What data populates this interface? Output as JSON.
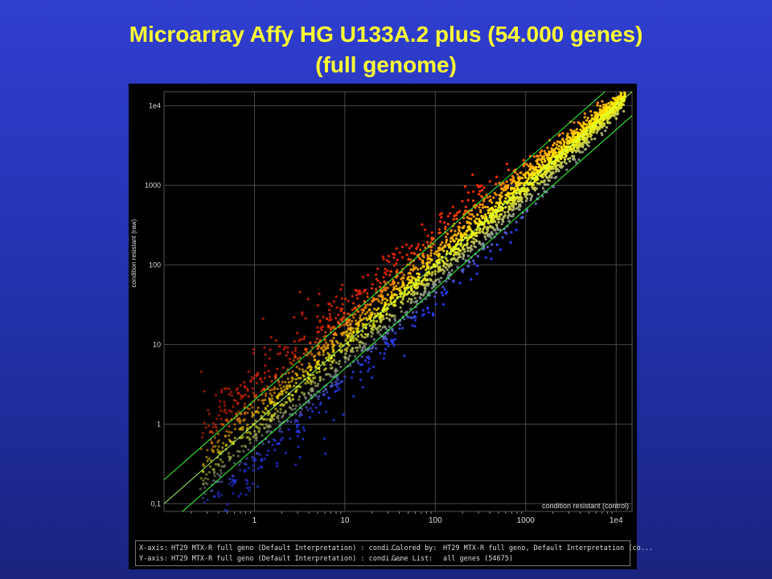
{
  "slide": {
    "title_line1": "Microarray Affy HG U133A.2 plus (54.000 genes)",
    "title_line2": "(full genome)",
    "title_color": "#ffff33"
  },
  "chart_data": {
    "type": "scatter",
    "x_scale": "log",
    "y_scale": "log",
    "xlim": [
      0.1,
      15000
    ],
    "ylim": [
      0.08,
      15000
    ],
    "x_ticks": [
      {
        "value": 1,
        "label": "1"
      },
      {
        "value": 10,
        "label": "10"
      },
      {
        "value": 100,
        "label": "100"
      },
      {
        "value": 1000,
        "label": "1000"
      },
      {
        "value": 10000,
        "label": "1e4"
      }
    ],
    "y_ticks": [
      {
        "value": 0.1,
        "label": "0,1"
      },
      {
        "value": 1,
        "label": "1"
      },
      {
        "value": 10,
        "label": "10"
      },
      {
        "value": 100,
        "label": "100"
      },
      {
        "value": 1000,
        "label": "1000"
      },
      {
        "value": 10000,
        "label": "1e4"
      }
    ],
    "xlabel": "condition resistant  (control)",
    "ylabel": "condition resistant   (raw)",
    "grid": true,
    "reference_lines": [
      {
        "fold_change": 1,
        "color": "#aaff66"
      },
      {
        "fold_change": 2,
        "color": "#33ff33"
      },
      {
        "fold_change": 0.5,
        "color": "#33ff33"
      }
    ],
    "color_scale": {
      "up": "#ff2a00",
      "mid": "#ffff00",
      "down": "#2a3cff"
    },
    "point_count": 54675
  },
  "info": {
    "x_axis_label": "X-axis:",
    "x_axis_value": "HT29 MTX-R full geno (Default Interpretation) : condi...",
    "y_axis_label": "Y-axis:",
    "y_axis_value": "HT29 MTX-R full geno (Default Interpretation) : condi...",
    "colored_by_label": "Colored by:",
    "colored_by_value": "HT29 MTX-R full geno, Default Interpretation (co...",
    "gene_list_label": "Gene List:",
    "gene_list_value": "all genes (54675)"
  }
}
